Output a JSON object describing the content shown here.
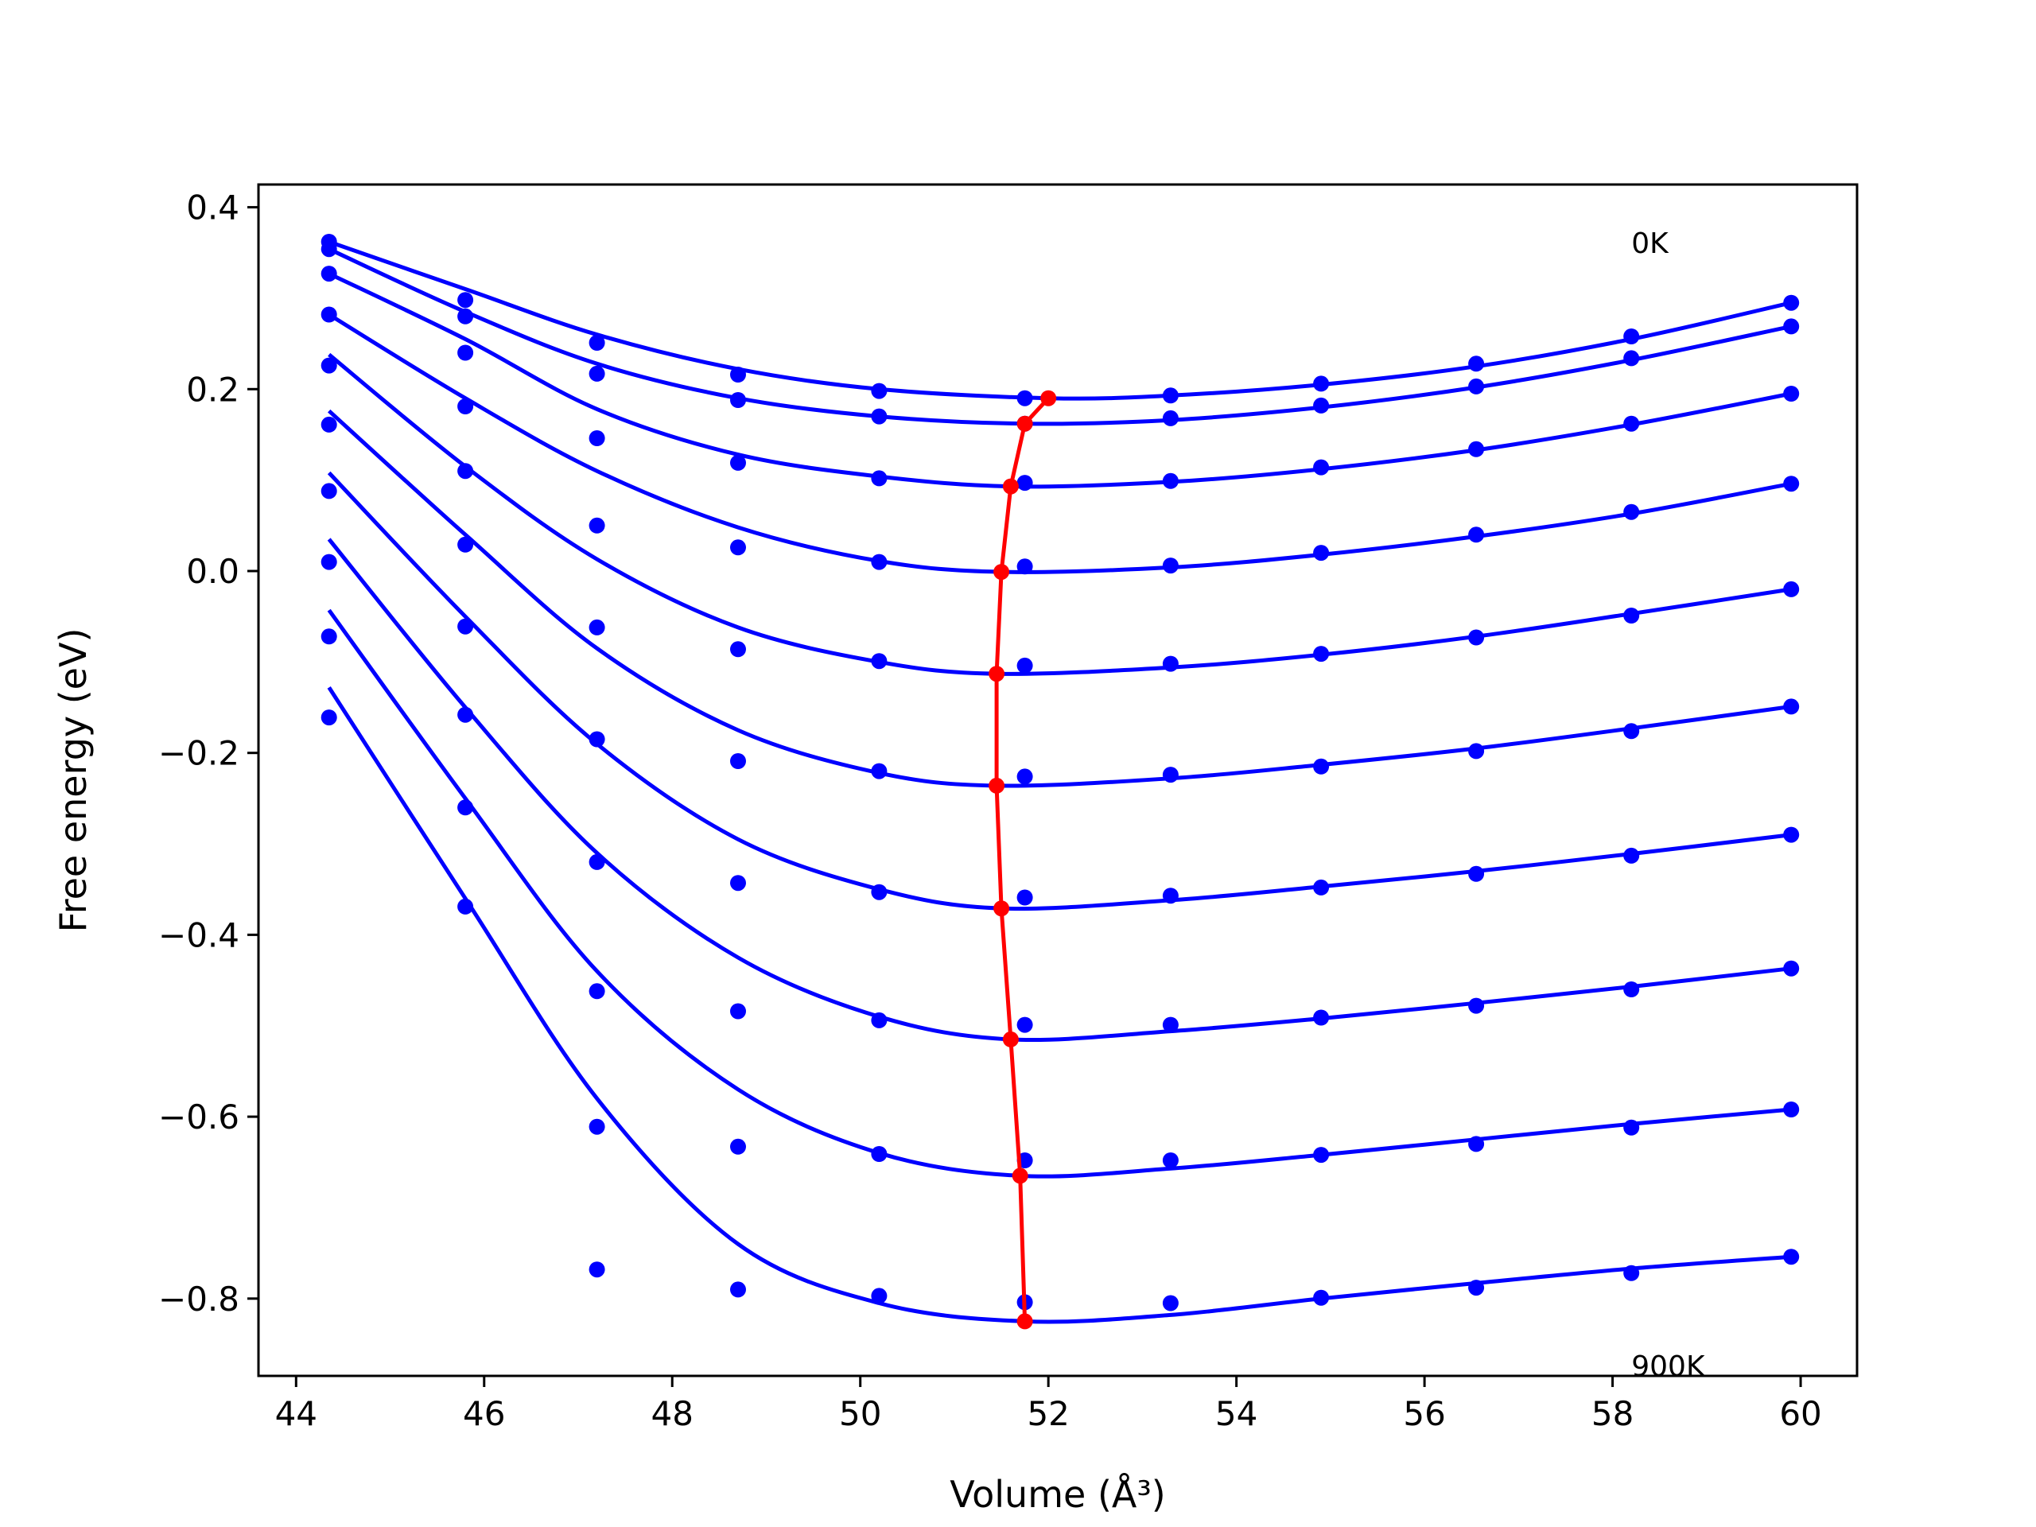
{
  "chart_data": {
    "type": "line",
    "xlabel": "Volume (Å³)",
    "ylabel": "Free energy (eV)",
    "xlim": [
      43.6,
      60.6
    ],
    "ylim": [
      -0.885,
      0.425
    ],
    "xticks": [
      44,
      46,
      48,
      50,
      52,
      54,
      56,
      58,
      60
    ],
    "xtick_labels": [
      "44",
      "46",
      "48",
      "50",
      "52",
      "54",
      "56",
      "58",
      "60"
    ],
    "yticks": [
      0.4,
      0.2,
      0.0,
      -0.2,
      -0.4,
      -0.6,
      -0.8
    ],
    "ytick_labels": [
      "0.4",
      "0.2",
      "0.0",
      "−0.2",
      "−0.4",
      "−0.6",
      "−0.8"
    ],
    "grid": false,
    "colors": {
      "data": "#0000ff",
      "fit": "#0000ff",
      "minimum": "#ff0000"
    },
    "annotations": [
      {
        "text": "0K",
        "x": 58.2,
        "y": 0.35
      },
      {
        "text": "900K",
        "x": 58.2,
        "y": -0.885
      }
    ],
    "volumes": [
      44.35,
      45.8,
      47.2,
      48.7,
      50.2,
      51.75,
      53.3,
      54.9,
      56.55,
      58.2,
      59.9
    ],
    "isotherms": [
      {
        "points": [
          0.362,
          0.298,
          0.251,
          0.216,
          0.198,
          0.19,
          0.193,
          0.206,
          0.228,
          0.258,
          0.295
        ],
        "fit": {
          "x": [
            44.35,
            45.8,
            47.2,
            48.7,
            50.2,
            52.0,
            53.3,
            54.9,
            56.55,
            58.2,
            59.9
          ],
          "y": [
            0.362,
            0.31,
            0.26,
            0.222,
            0.2,
            0.19,
            0.193,
            0.205,
            0.225,
            0.255,
            0.295
          ]
        }
      },
      {
        "points": [
          0.354,
          0.28,
          0.217,
          0.188,
          0.17,
          0.162,
          0.168,
          0.182,
          0.203,
          0.234,
          0.269
        ],
        "fit": {
          "x": [
            44.35,
            45.8,
            47.2,
            48.7,
            50.2,
            51.75,
            53.3,
            54.9,
            56.55,
            58.2,
            59.9
          ],
          "y": [
            0.354,
            0.285,
            0.228,
            0.19,
            0.17,
            0.162,
            0.166,
            0.18,
            0.202,
            0.232,
            0.269
          ]
        }
      },
      {
        "points": [
          0.327,
          0.24,
          0.146,
          0.119,
          0.102,
          0.097,
          0.099,
          0.114,
          0.134,
          0.162,
          0.195
        ],
        "fit": {
          "x": [
            44.35,
            45.8,
            47.2,
            48.7,
            50.2,
            51.6,
            53.3,
            54.9,
            56.55,
            58.2,
            59.9
          ],
          "y": [
            0.327,
            0.255,
            0.178,
            0.128,
            0.104,
            0.093,
            0.098,
            0.112,
            0.133,
            0.161,
            0.195
          ]
        }
      },
      {
        "points": [
          0.282,
          0.181,
          0.05,
          0.026,
          0.01,
          0.005,
          0.006,
          0.02,
          0.04,
          0.065,
          0.096
        ],
        "fit": {
          "x": [
            44.35,
            45.8,
            47.2,
            48.7,
            50.2,
            51.5,
            53.3,
            54.9,
            56.55,
            58.2,
            59.9
          ],
          "y": [
            0.282,
            0.19,
            0.11,
            0.048,
            0.011,
            -0.001,
            0.004,
            0.018,
            0.038,
            0.063,
            0.096
          ]
        }
      },
      {
        "points": [
          0.226,
          0.11,
          -0.062,
          -0.086,
          -0.099,
          -0.104,
          -0.102,
          -0.091,
          -0.073,
          -0.049,
          -0.02
        ],
        "fit": {
          "x": [
            44.35,
            45.8,
            47.2,
            48.7,
            50.2,
            51.45,
            53.3,
            54.9,
            56.55,
            58.2,
            59.9
          ],
          "y": [
            0.238,
            0.115,
            0.013,
            -0.062,
            -0.1,
            -0.113,
            -0.106,
            -0.092,
            -0.072,
            -0.047,
            -0.02
          ]
        }
      },
      {
        "points": [
          0.161,
          0.029,
          -0.185,
          -0.209,
          -0.22,
          -0.226,
          -0.224,
          -0.215,
          -0.198,
          -0.176,
          -0.149
        ],
        "fit": {
          "x": [
            44.35,
            45.8,
            47.2,
            48.7,
            50.2,
            51.45,
            53.3,
            54.9,
            56.55,
            58.2,
            59.9
          ],
          "y": [
            0.176,
            0.04,
            -0.085,
            -0.175,
            -0.222,
            -0.236,
            -0.228,
            -0.213,
            -0.195,
            -0.173,
            -0.149
          ]
        }
      },
      {
        "points": [
          0.088,
          -0.061,
          -0.32,
          -0.343,
          -0.353,
          -0.359,
          -0.357,
          -0.348,
          -0.333,
          -0.313,
          -0.29
        ],
        "fit": {
          "x": [
            44.35,
            45.8,
            47.2,
            48.7,
            50.2,
            51.5,
            53.3,
            54.9,
            56.55,
            58.2,
            59.9
          ],
          "y": [
            0.108,
            -0.05,
            -0.19,
            -0.295,
            -0.35,
            -0.371,
            -0.362,
            -0.347,
            -0.33,
            -0.311,
            -0.29
          ]
        }
      },
      {
        "points": [
          0.01,
          -0.158,
          -0.462,
          -0.484,
          -0.494,
          -0.499,
          -0.499,
          -0.491,
          -0.478,
          -0.46,
          -0.437
        ],
        "fit": {
          "x": [
            44.35,
            45.8,
            47.2,
            48.7,
            50.2,
            51.6,
            53.3,
            54.9,
            56.55,
            58.2,
            59.9
          ],
          "y": [
            0.035,
            -0.15,
            -0.31,
            -0.425,
            -0.49,
            -0.515,
            -0.506,
            -0.492,
            -0.475,
            -0.457,
            -0.437
          ]
        }
      },
      {
        "points": [
          -0.072,
          -0.26,
          -0.611,
          -0.633,
          -0.641,
          -0.648,
          -0.648,
          -0.642,
          -0.63,
          -0.612,
          -0.592
        ],
        "fit": {
          "x": [
            44.35,
            45.8,
            47.2,
            48.7,
            50.2,
            51.7,
            53.3,
            54.9,
            56.55,
            58.2,
            59.9
          ],
          "y": [
            -0.043,
            -0.25,
            -0.44,
            -0.57,
            -0.64,
            -0.665,
            -0.657,
            -0.642,
            -0.625,
            -0.608,
            -0.592
          ]
        }
      },
      {
        "points": [
          -0.161,
          -0.369,
          -0.768,
          -0.79,
          -0.797,
          -0.804,
          -0.805,
          -0.799,
          -0.788,
          -0.772,
          -0.754
        ],
        "fit": {
          "x": [
            44.35,
            45.8,
            47.2,
            48.7,
            50.2,
            51.75,
            53.3,
            54.9,
            56.55,
            58.2,
            59.9
          ],
          "y": [
            -0.128,
            -0.36,
            -0.58,
            -0.74,
            -0.805,
            -0.825,
            -0.818,
            -0.8,
            -0.783,
            -0.767,
            -0.754
          ]
        }
      }
    ],
    "minimum_path": {
      "x": [
        52.0,
        51.75,
        51.6,
        51.5,
        51.45,
        51.45,
        51.5,
        51.6,
        51.7,
        51.75
      ],
      "y": [
        0.19,
        0.162,
        0.093,
        -0.001,
        -0.113,
        -0.236,
        -0.371,
        -0.515,
        -0.665,
        -0.825
      ]
    }
  }
}
